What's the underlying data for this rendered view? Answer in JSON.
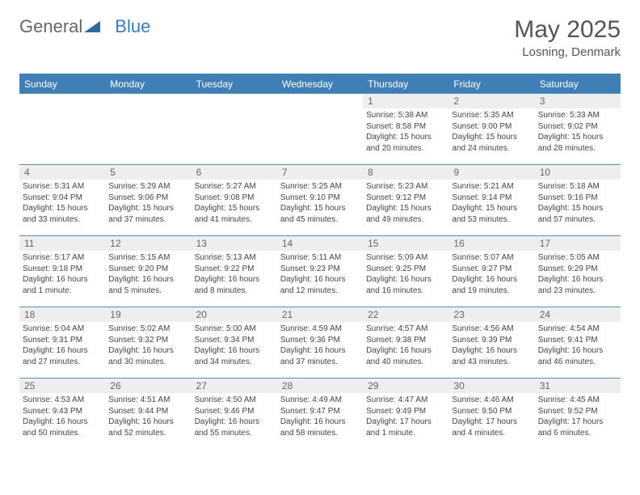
{
  "brand": {
    "part1": "General",
    "part2": "Blue"
  },
  "title": "May 2025",
  "location": "Losning, Denmark",
  "colors": {
    "accent": "#3f7fb5",
    "header_bg": "#3f7fb5",
    "daybar": "#eeeeee",
    "text": "#444444"
  },
  "days_header": [
    "Sunday",
    "Monday",
    "Tuesday",
    "Wednesday",
    "Thursday",
    "Friday",
    "Saturday"
  ],
  "weeks": [
    [
      {
        "empty": true
      },
      {
        "empty": true
      },
      {
        "empty": true
      },
      {
        "empty": true
      },
      {
        "n": "1",
        "sunrise": "Sunrise: 5:38 AM",
        "sunset": "Sunset: 8:58 PM",
        "day": "Daylight: 15 hours and 20 minutes."
      },
      {
        "n": "2",
        "sunrise": "Sunrise: 5:35 AM",
        "sunset": "Sunset: 9:00 PM",
        "day": "Daylight: 15 hours and 24 minutes."
      },
      {
        "n": "3",
        "sunrise": "Sunrise: 5:33 AM",
        "sunset": "Sunset: 9:02 PM",
        "day": "Daylight: 15 hours and 28 minutes."
      }
    ],
    [
      {
        "n": "4",
        "sunrise": "Sunrise: 5:31 AM",
        "sunset": "Sunset: 9:04 PM",
        "day": "Daylight: 15 hours and 33 minutes."
      },
      {
        "n": "5",
        "sunrise": "Sunrise: 5:29 AM",
        "sunset": "Sunset: 9:06 PM",
        "day": "Daylight: 15 hours and 37 minutes."
      },
      {
        "n": "6",
        "sunrise": "Sunrise: 5:27 AM",
        "sunset": "Sunset: 9:08 PM",
        "day": "Daylight: 15 hours and 41 minutes."
      },
      {
        "n": "7",
        "sunrise": "Sunrise: 5:25 AM",
        "sunset": "Sunset: 9:10 PM",
        "day": "Daylight: 15 hours and 45 minutes."
      },
      {
        "n": "8",
        "sunrise": "Sunrise: 5:23 AM",
        "sunset": "Sunset: 9:12 PM",
        "day": "Daylight: 15 hours and 49 minutes."
      },
      {
        "n": "9",
        "sunrise": "Sunrise: 5:21 AM",
        "sunset": "Sunset: 9:14 PM",
        "day": "Daylight: 15 hours and 53 minutes."
      },
      {
        "n": "10",
        "sunrise": "Sunrise: 5:18 AM",
        "sunset": "Sunset: 9:16 PM",
        "day": "Daylight: 15 hours and 57 minutes."
      }
    ],
    [
      {
        "n": "11",
        "sunrise": "Sunrise: 5:17 AM",
        "sunset": "Sunset: 9:18 PM",
        "day": "Daylight: 16 hours and 1 minute."
      },
      {
        "n": "12",
        "sunrise": "Sunrise: 5:15 AM",
        "sunset": "Sunset: 9:20 PM",
        "day": "Daylight: 16 hours and 5 minutes."
      },
      {
        "n": "13",
        "sunrise": "Sunrise: 5:13 AM",
        "sunset": "Sunset: 9:22 PM",
        "day": "Daylight: 16 hours and 8 minutes."
      },
      {
        "n": "14",
        "sunrise": "Sunrise: 5:11 AM",
        "sunset": "Sunset: 9:23 PM",
        "day": "Daylight: 16 hours and 12 minutes."
      },
      {
        "n": "15",
        "sunrise": "Sunrise: 5:09 AM",
        "sunset": "Sunset: 9:25 PM",
        "day": "Daylight: 16 hours and 16 minutes."
      },
      {
        "n": "16",
        "sunrise": "Sunrise: 5:07 AM",
        "sunset": "Sunset: 9:27 PM",
        "day": "Daylight: 16 hours and 19 minutes."
      },
      {
        "n": "17",
        "sunrise": "Sunrise: 5:05 AM",
        "sunset": "Sunset: 9:29 PM",
        "day": "Daylight: 16 hours and 23 minutes."
      }
    ],
    [
      {
        "n": "18",
        "sunrise": "Sunrise: 5:04 AM",
        "sunset": "Sunset: 9:31 PM",
        "day": "Daylight: 16 hours and 27 minutes."
      },
      {
        "n": "19",
        "sunrise": "Sunrise: 5:02 AM",
        "sunset": "Sunset: 9:32 PM",
        "day": "Daylight: 16 hours and 30 minutes."
      },
      {
        "n": "20",
        "sunrise": "Sunrise: 5:00 AM",
        "sunset": "Sunset: 9:34 PM",
        "day": "Daylight: 16 hours and 34 minutes."
      },
      {
        "n": "21",
        "sunrise": "Sunrise: 4:59 AM",
        "sunset": "Sunset: 9:36 PM",
        "day": "Daylight: 16 hours and 37 minutes."
      },
      {
        "n": "22",
        "sunrise": "Sunrise: 4:57 AM",
        "sunset": "Sunset: 9:38 PM",
        "day": "Daylight: 16 hours and 40 minutes."
      },
      {
        "n": "23",
        "sunrise": "Sunrise: 4:56 AM",
        "sunset": "Sunset: 9:39 PM",
        "day": "Daylight: 16 hours and 43 minutes."
      },
      {
        "n": "24",
        "sunrise": "Sunrise: 4:54 AM",
        "sunset": "Sunset: 9:41 PM",
        "day": "Daylight: 16 hours and 46 minutes."
      }
    ],
    [
      {
        "n": "25",
        "sunrise": "Sunrise: 4:53 AM",
        "sunset": "Sunset: 9:43 PM",
        "day": "Daylight: 16 hours and 50 minutes."
      },
      {
        "n": "26",
        "sunrise": "Sunrise: 4:51 AM",
        "sunset": "Sunset: 9:44 PM",
        "day": "Daylight: 16 hours and 52 minutes."
      },
      {
        "n": "27",
        "sunrise": "Sunrise: 4:50 AM",
        "sunset": "Sunset: 9:46 PM",
        "day": "Daylight: 16 hours and 55 minutes."
      },
      {
        "n": "28",
        "sunrise": "Sunrise: 4:49 AM",
        "sunset": "Sunset: 9:47 PM",
        "day": "Daylight: 16 hours and 58 minutes."
      },
      {
        "n": "29",
        "sunrise": "Sunrise: 4:47 AM",
        "sunset": "Sunset: 9:49 PM",
        "day": "Daylight: 17 hours and 1 minute."
      },
      {
        "n": "30",
        "sunrise": "Sunrise: 4:46 AM",
        "sunset": "Sunset: 9:50 PM",
        "day": "Daylight: 17 hours and 4 minutes."
      },
      {
        "n": "31",
        "sunrise": "Sunrise: 4:45 AM",
        "sunset": "Sunset: 9:52 PM",
        "day": "Daylight: 17 hours and 6 minutes."
      }
    ]
  ]
}
